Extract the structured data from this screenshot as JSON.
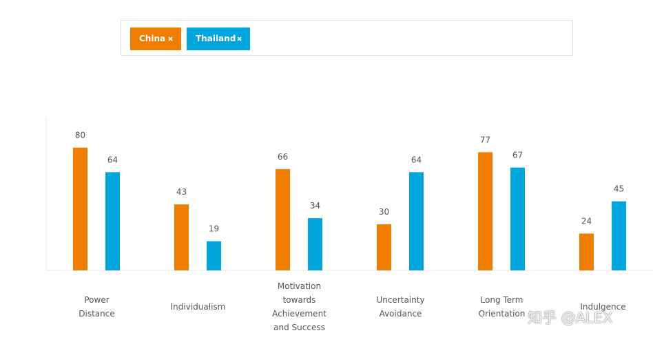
{
  "chart_data": {
    "type": "bar",
    "categories": [
      "Power Distance",
      "Individualism",
      "Motivation towards Achievement and Success",
      "Uncertainty Avoidance",
      "Long Term Orientation",
      "Indulgence"
    ],
    "series": [
      {
        "name": "China",
        "color": "#ef7d00",
        "values": [
          80,
          43,
          66,
          30,
          77,
          24
        ]
      },
      {
        "name": "Thailand",
        "color": "#00a5de",
        "values": [
          64,
          19,
          34,
          64,
          67,
          45
        ]
      }
    ],
    "ylim": [
      0,
      100
    ]
  },
  "watermark": "知乎 @ALEX"
}
